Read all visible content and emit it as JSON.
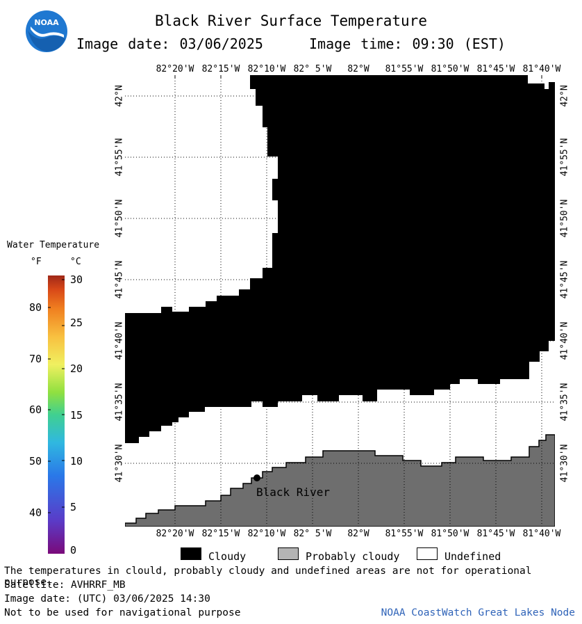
{
  "header": {
    "title": "Black River Surface Temperature",
    "image_date": "Image date: 03/06/2025",
    "image_time": "Image time: 09:30 (EST)"
  },
  "logo": {
    "text": "NOAA",
    "icon": "noaa-logo-icon"
  },
  "longitude_labels": [
    "82°20'W",
    "82°15'W",
    "82°10'W",
    "82° 5'W",
    "82°W",
    "81°55'W",
    "81°50'W",
    "81°45'W",
    "81°40'W"
  ],
  "latitude_labels": [
    "42°N",
    "41°55'N",
    "41°50'N",
    "41°45'N",
    "41°40'N",
    "41°35'N",
    "41°30'N"
  ],
  "legend": {
    "title": "Water Temperature",
    "unit_f": "°F",
    "unit_c": "°C",
    "fahrenheit_ticks": [
      "80",
      "70",
      "60",
      "50",
      "40"
    ],
    "celsius_ticks": [
      "30",
      "25",
      "20",
      "15",
      "10",
      "5",
      "0"
    ],
    "colors": [
      "#7a0a7a",
      "#5a3cc8",
      "#2a78e8",
      "#30b8e0",
      "#40d090",
      "#90e040",
      "#f0f060",
      "#f8c040",
      "#f08020",
      "#d84818",
      "#a02818"
    ]
  },
  "map": {
    "place_label": "Black River",
    "cloud_color": "#000000",
    "land_color": "#6e6e6e",
    "undefined_color": "#ffffff"
  },
  "key": {
    "cloudy": "Cloudy",
    "probably_cloudy": "Probably cloudy",
    "undefined": "Undefined",
    "probably_cloudy_color": "#b4b4b4"
  },
  "footer": {
    "line1": "The temperatures in clould, probably cloudy and undefined areas are not for operational purpose.",
    "line2": "Satellite: AVHRRF_MB",
    "line3": "Image date: (UTC) 03/06/2025  14:30",
    "line4": "Not to be used for navigational purpose",
    "node": "NOAA CoastWatch Great Lakes Node"
  }
}
